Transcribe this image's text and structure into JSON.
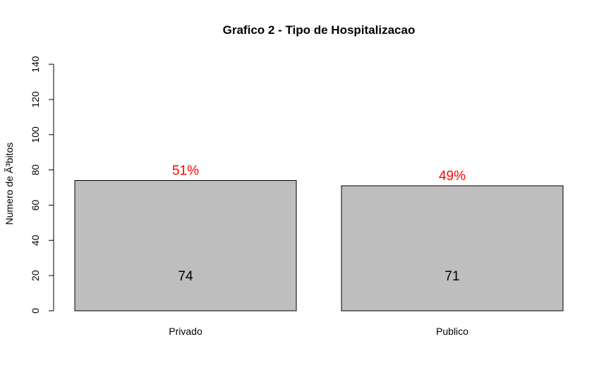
{
  "chart_data": {
    "type": "bar",
    "title": "Grafico 2 - Tipo de Hospitalizacao",
    "xlabel": "",
    "ylabel": "Numero de Ã³bitos",
    "categories": [
      "Privado",
      "Publico"
    ],
    "values": [
      74,
      71
    ],
    "percent_labels": [
      "51%",
      "49%"
    ],
    "value_labels": [
      "74",
      "71"
    ],
    "ylim": [
      0,
      140
    ],
    "yticks": [
      0,
      20,
      40,
      60,
      80,
      100,
      120,
      140
    ],
    "ytick_labels": [
      "0",
      "20",
      "40",
      "60",
      "80",
      "100",
      "120",
      "140"
    ],
    "bar_color": "#bebebe",
    "percent_label_color": "#ff0000",
    "grid": false,
    "legend": "none"
  }
}
